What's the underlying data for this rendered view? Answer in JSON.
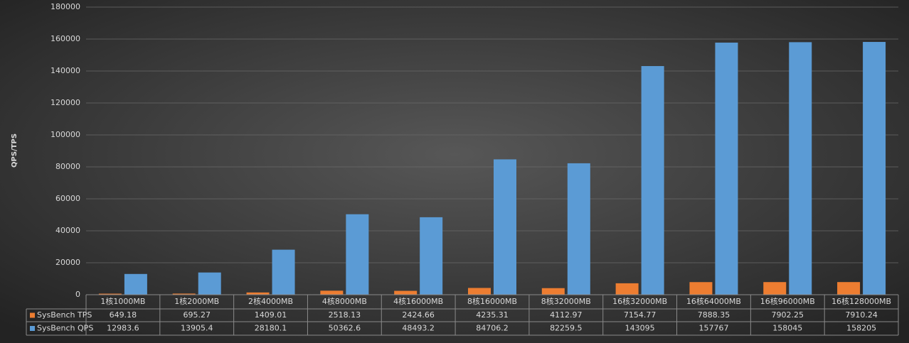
{
  "chart_data": {
    "type": "bar",
    "y_label": "QPS/TPS",
    "categories": [
      "1核1000MB",
      "1核2000MB",
      "2核4000MB",
      "4核8000MB",
      "4核16000MB",
      "8核16000MB",
      "8核32000MB",
      "16核32000MB",
      "16核64000MB",
      "16核96000MB",
      "16核128000MB"
    ],
    "series": [
      {
        "name": "SysBench TPS",
        "color": "#ed7d31",
        "values": [
          649.18,
          695.27,
          1409.01,
          2518.13,
          2424.66,
          4235.31,
          4112.97,
          7154.77,
          7888.35,
          7902.25,
          7910.24
        ]
      },
      {
        "name": "SysBench QPS",
        "color": "#5b9bd5",
        "values": [
          12983.6,
          13905.4,
          28180.1,
          50362.6,
          48493.2,
          84706.2,
          82259.5,
          143095,
          157767,
          158045,
          158205
        ]
      }
    ],
    "ylim": [
      0,
      180000
    ],
    "yticks": [
      0,
      20000,
      40000,
      60000,
      80000,
      100000,
      120000,
      140000,
      160000,
      180000
    ],
    "grid": true
  }
}
